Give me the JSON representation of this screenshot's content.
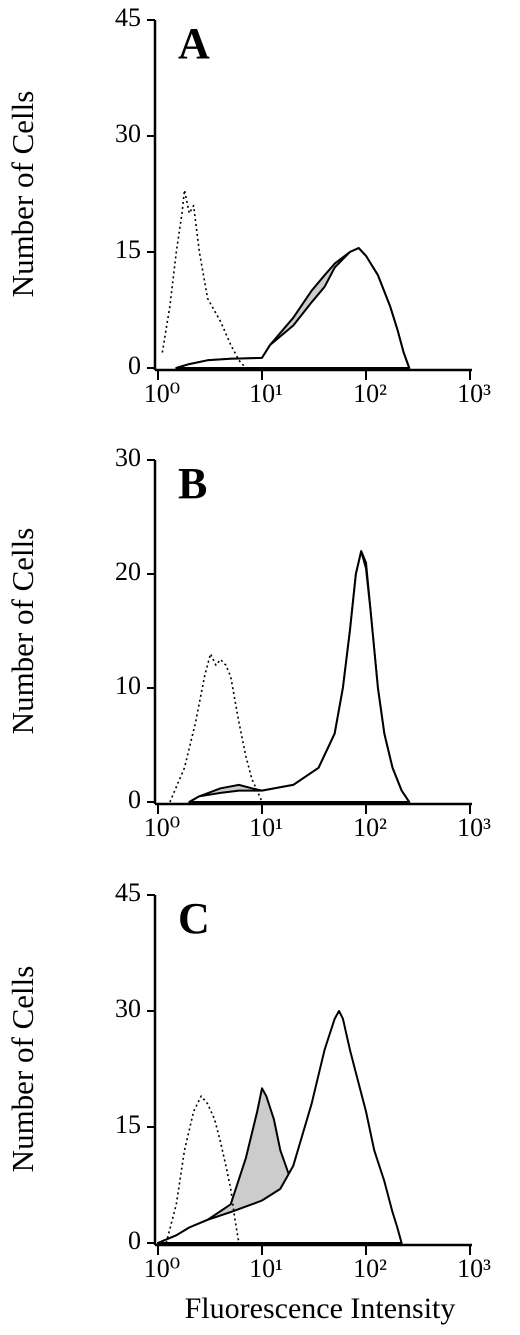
{
  "chart_data": [
    {
      "type": "line",
      "title": "A",
      "ylabel": "Number of Cells",
      "xscale": "log",
      "xlim": [
        1,
        1000
      ],
      "xticks": [
        {
          "value": 1,
          "label": "10⁰"
        },
        {
          "value": 10,
          "label": "10¹"
        },
        {
          "value": 100,
          "label": "10²"
        },
        {
          "value": 1000,
          "label": "10³"
        }
      ],
      "ylim": [
        0,
        45
      ],
      "yticks": [
        0,
        15,
        30,
        45
      ],
      "series": [
        {
          "style": "solid",
          "color": "#000000",
          "fill": "#cccccc",
          "x": [
            1.5,
            2,
            3,
            5,
            10,
            12,
            20,
            30,
            40,
            50,
            70,
            85,
            100,
            130,
            170,
            200,
            230,
            260
          ],
          "values": [
            0,
            0.5,
            1,
            1.2,
            1.3,
            3,
            6.5,
            10,
            12,
            13.5,
            15,
            15.5,
            14.5,
            12,
            8,
            5,
            2,
            0
          ]
        },
        {
          "style": "solid",
          "color": "#000000",
          "fill": "#ffffff",
          "x": [
            1.5,
            2,
            3,
            5,
            10,
            12,
            20,
            30,
            40,
            50,
            70,
            85,
            100,
            130,
            170,
            200,
            230,
            260
          ],
          "values": [
            0,
            0.5,
            1,
            1.2,
            1.3,
            3,
            5.5,
            8.5,
            10.5,
            13,
            15,
            15.5,
            14.5,
            12,
            8,
            5,
            2,
            0
          ]
        },
        {
          "style": "dotted",
          "color": "#000000",
          "fill": "none",
          "x": [
            1.1,
            1.3,
            1.5,
            1.7,
            1.8,
            2.0,
            2.2,
            2.5,
            3,
            4,
            5,
            6,
            7
          ],
          "values": [
            2,
            8,
            15,
            20,
            23,
            20,
            21,
            15,
            9,
            6,
            3,
            1,
            0
          ]
        }
      ]
    },
    {
      "type": "line",
      "title": "B",
      "ylabel": "Number of Cells",
      "xscale": "log",
      "xlim": [
        1,
        1000
      ],
      "xticks": [
        {
          "value": 1,
          "label": "10⁰"
        },
        {
          "value": 10,
          "label": "10¹"
        },
        {
          "value": 100,
          "label": "10²"
        },
        {
          "value": 1000,
          "label": "10³"
        }
      ],
      "ylim": [
        0,
        30
      ],
      "yticks": [
        0,
        10,
        20,
        30
      ],
      "series": [
        {
          "style": "solid",
          "color": "#000000",
          "fill": "#cccccc",
          "x": [
            2,
            2.5,
            4,
            6,
            8,
            10,
            20,
            35,
            50,
            60,
            70,
            80,
            90,
            100,
            110,
            130,
            150,
            180,
            220,
            260
          ],
          "values": [
            0,
            0.5,
            1.2,
            1.5,
            1.2,
            1,
            1.5,
            3,
            6,
            10,
            15,
            20,
            22,
            21,
            17,
            10,
            6,
            3,
            1,
            0
          ]
        },
        {
          "style": "solid",
          "color": "#000000",
          "fill": "#ffffff",
          "x": [
            2,
            2.5,
            4,
            6,
            8,
            10,
            20,
            35,
            50,
            60,
            70,
            80,
            90,
            100,
            110,
            130,
            150,
            180,
            220,
            260
          ],
          "values": [
            0,
            0.5,
            0.8,
            1,
            1,
            1,
            1.5,
            3,
            6,
            10,
            15,
            20,
            22,
            20.5,
            17,
            10,
            6,
            3,
            1,
            0
          ]
        },
        {
          "style": "dotted",
          "color": "#000000",
          "fill": "none",
          "x": [
            1.3,
            1.8,
            2.3,
            2.8,
            3.2,
            3.6,
            4,
            4.5,
            5,
            6,
            7,
            8,
            9,
            10
          ],
          "values": [
            0,
            3,
            7,
            11,
            13,
            12,
            12.5,
            12,
            11,
            7,
            4,
            2,
            1,
            0
          ]
        }
      ]
    },
    {
      "type": "line",
      "title": "C",
      "ylabel": "Number of Cells",
      "xlabel": "Fluorescence Intensity",
      "xscale": "log",
      "xlim": [
        1,
        1000
      ],
      "xticks": [
        {
          "value": 1,
          "label": "10⁰"
        },
        {
          "value": 10,
          "label": "10¹"
        },
        {
          "value": 100,
          "label": "10²"
        },
        {
          "value": 1000,
          "label": "10³"
        }
      ],
      "ylim": [
        0,
        45
      ],
      "yticks": [
        0,
        15,
        30,
        45
      ],
      "series": [
        {
          "style": "solid",
          "color": "#000000",
          "fill": "#cccccc",
          "x": [
            1,
            1.5,
            2,
            3,
            5,
            7,
            9,
            10,
            11,
            13,
            15,
            18,
            22,
            30,
            40,
            50,
            60
          ],
          "values": [
            0,
            1,
            2,
            3,
            5,
            11,
            17,
            20,
            19,
            16,
            12,
            9,
            8,
            7,
            4,
            2,
            0
          ]
        },
        {
          "style": "solid",
          "color": "#000000",
          "fill": "#ffffff",
          "x": [
            1,
            1.5,
            2,
            3,
            5,
            8,
            10,
            15,
            20,
            30,
            40,
            50,
            55,
            60,
            70,
            80,
            100,
            120,
            150,
            180,
            200,
            220
          ],
          "values": [
            0,
            1,
            2,
            3,
            4,
            5,
            5.5,
            7,
            10,
            18,
            25,
            29,
            30,
            29,
            25,
            22,
            17,
            12,
            8,
            4,
            2,
            0
          ]
        },
        {
          "style": "dotted",
          "color": "#000000",
          "fill": "none",
          "x": [
            1.2,
            1.5,
            1.8,
            2.2,
            2.6,
            3,
            3.5,
            4,
            4.5,
            5,
            5.5,
            6
          ],
          "values": [
            0,
            5,
            12,
            17,
            19,
            18,
            16,
            13,
            10,
            7,
            3,
            0
          ]
        }
      ]
    }
  ]
}
